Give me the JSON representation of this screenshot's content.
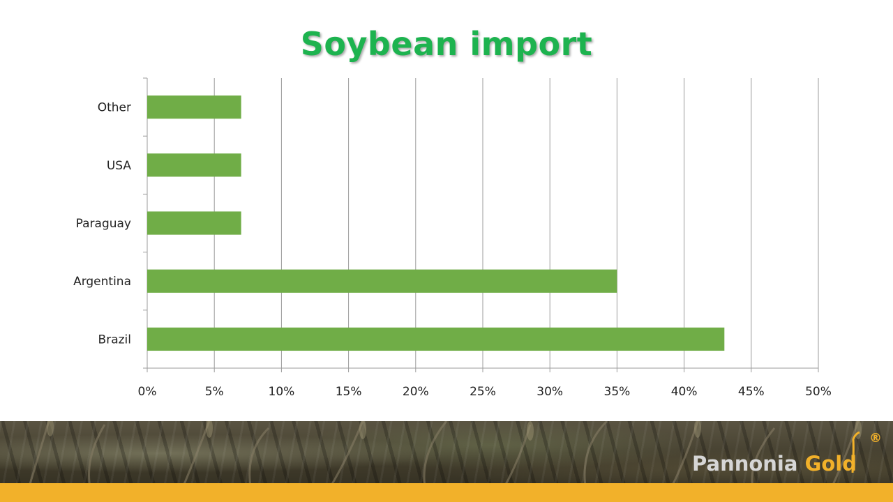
{
  "chart_data": {
    "type": "bar",
    "orientation": "horizontal",
    "title": "Soybean import",
    "categories": [
      "Brazil",
      "Argentina",
      "Paraguay",
      "USA",
      "Other"
    ],
    "values": [
      0.43,
      0.35,
      0.07,
      0.07,
      0.07
    ],
    "xlim": [
      0,
      0.5
    ],
    "xticks": [
      "0%",
      "5%",
      "10%",
      "15%",
      "20%",
      "25%",
      "30%",
      "35%",
      "40%",
      "45%",
      "50%"
    ],
    "grid": "vertical",
    "legend": "none",
    "colors": {
      "bar": "#70ad47",
      "title": "#1db34f",
      "grid": "#9b9b9b"
    }
  },
  "footer": {
    "logo_word_1": "Pannonia",
    "logo_word_2": "Gold",
    "logo_reg": "®",
    "colors": {
      "band": "#f2b12a"
    }
  }
}
